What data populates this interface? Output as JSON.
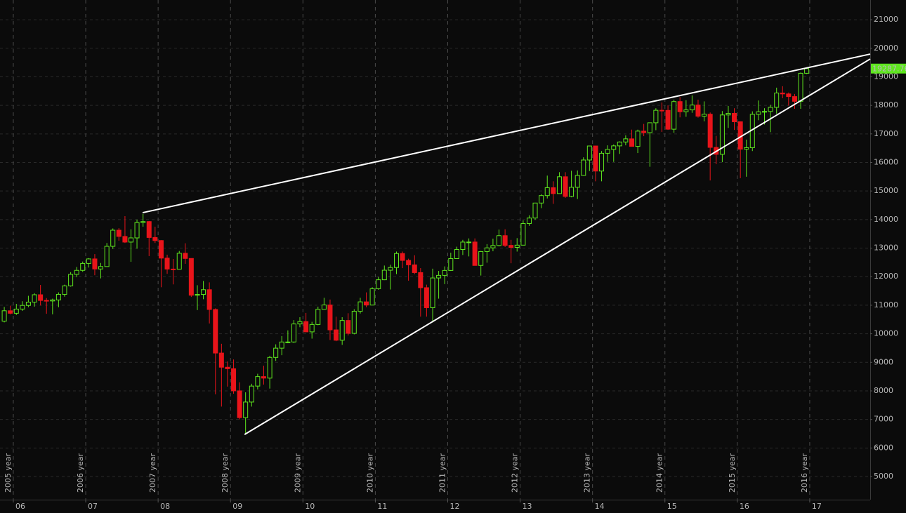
{
  "chart_data": {
    "type": "candlestick",
    "up_color": "#5ee61e",
    "down_color": "#e8141a",
    "grid": true,
    "xlim": [
      2005.816,
      2017.835
    ],
    "xticks": [
      {
        "value": 2006,
        "label": "06"
      },
      {
        "value": 2007,
        "label": "07"
      },
      {
        "value": 2008,
        "label": "08"
      },
      {
        "value": 2009,
        "label": "09"
      },
      {
        "value": 2010,
        "label": "10"
      },
      {
        "value": 2011,
        "label": "11"
      },
      {
        "value": 2012,
        "label": "12"
      },
      {
        "value": 2013,
        "label": "13"
      },
      {
        "value": 2014,
        "label": "14"
      },
      {
        "value": 2015,
        "label": "15"
      },
      {
        "value": 2016,
        "label": "16"
      },
      {
        "value": 2017,
        "label": "17"
      }
    ],
    "period_labels": [
      "2005 year",
      "2006 year",
      "2007 year",
      "2008 year",
      "2009 year",
      "2010 year",
      "2011 year",
      "2012 year",
      "2013 year",
      "2014 year",
      "2015 year",
      "2016 year"
    ],
    "ylim": [
      4190,
      21690
    ],
    "yticks": [
      5000,
      6000,
      7000,
      8000,
      9000,
      10000,
      11000,
      12000,
      13000,
      14000,
      15000,
      16000,
      17000,
      18000,
      19000,
      20000,
      21000
    ],
    "last_price": 19287.76,
    "x": [
      2005.875,
      2005.958,
      2006.042,
      2006.125,
      2006.208,
      2006.292,
      2006.375,
      2006.458,
      2006.542,
      2006.625,
      2006.708,
      2006.792,
      2006.875,
      2006.958,
      2007.042,
      2007.125,
      2007.208,
      2007.292,
      2007.375,
      2007.458,
      2007.542,
      2007.625,
      2007.708,
      2007.792,
      2007.875,
      2007.958,
      2008.042,
      2008.125,
      2008.208,
      2008.292,
      2008.375,
      2008.458,
      2008.542,
      2008.625,
      2008.708,
      2008.792,
      2008.875,
      2008.958,
      2009.042,
      2009.125,
      2009.208,
      2009.292,
      2009.375,
      2009.458,
      2009.542,
      2009.625,
      2009.708,
      2009.792,
      2009.875,
      2009.958,
      2010.042,
      2010.125,
      2010.208,
      2010.292,
      2010.375,
      2010.458,
      2010.542,
      2010.625,
      2010.708,
      2010.792,
      2010.875,
      2010.958,
      2011.042,
      2011.125,
      2011.208,
      2011.292,
      2011.375,
      2011.458,
      2011.542,
      2011.625,
      2011.708,
      2011.792,
      2011.875,
      2011.958,
      2012.042,
      2012.125,
      2012.208,
      2012.292,
      2012.375,
      2012.458,
      2012.542,
      2012.625,
      2012.708,
      2012.792,
      2012.875,
      2012.958,
      2013.042,
      2013.125,
      2013.208,
      2013.292,
      2013.375,
      2013.458,
      2013.542,
      2013.625,
      2013.708,
      2013.792,
      2013.875,
      2013.958,
      2014.042,
      2014.125,
      2014.208,
      2014.292,
      2014.375,
      2014.458,
      2014.542,
      2014.625,
      2014.708,
      2014.792,
      2014.875,
      2014.958,
      2015.042,
      2015.125,
      2015.208,
      2015.292,
      2015.375,
      2015.458,
      2015.542,
      2015.625,
      2015.708,
      2015.792,
      2015.875,
      2015.958,
      2016.042,
      2016.125,
      2016.208,
      2016.292,
      2016.375,
      2016.458,
      2016.542,
      2016.625,
      2016.708,
      2016.792,
      2016.875,
      2016.958
    ],
    "open": [
      10440,
      10806,
      10718,
      10865,
      10993,
      11109,
      11367,
      11168,
      11150,
      11185,
      11381,
      11679,
      12081,
      12221,
      12463,
      12622,
      12269,
      12354,
      13063,
      13628,
      13409,
      13212,
      13358,
      13896,
      13930,
      13372,
      13265,
      12650,
      12266,
      12263,
      12820,
      12638,
      11350,
      11378,
      11544,
      10851,
      9325,
      8829,
      8776,
      8001,
      7063,
      7609,
      8168,
      8500,
      8447,
      9172,
      9496,
      9712,
      9713,
      10344,
      10428,
      10067,
      10325,
      10857,
      11009,
      10137,
      9774,
      10466,
      10015,
      10788,
      11118,
      11006,
      11578,
      11892,
      12226,
      12320,
      12811,
      12570,
      12414,
      12143,
      11614,
      10913,
      11955,
      12046,
      12218,
      12633,
      12952,
      13212,
      13214,
      12393,
      12880,
      13009,
      13091,
      13437,
      13096,
      13026,
      13104,
      13861,
      14054,
      14579,
      14840,
      15116,
      14910,
      15500,
      14810,
      15130,
      15546,
      16086,
      16577,
      15699,
      16322,
      16458,
      16581,
      16717,
      16827,
      16563,
      17098,
      17043,
      17391,
      17828,
      17823,
      17165,
      18133,
      17776,
      17841,
      18011,
      17620,
      17690,
      16528,
      16285,
      17664,
      17720,
      17425,
      16466,
      16517,
      17685,
      17774,
      17787,
      17930,
      18432,
      18401,
      18308,
      18142,
      19124
    ],
    "high": [
      10940,
      10985,
      11048,
      11140,
      11330,
      11420,
      11710,
      11250,
      11230,
      11450,
      11720,
      12160,
      12340,
      12530,
      12650,
      12790,
      12480,
      13180,
      13690,
      13700,
      14120,
      13660,
      14000,
      14200,
      13950,
      13750,
      13280,
      12770,
      12620,
      12900,
      13170,
      12640,
      11700,
      11850,
      11800,
      10890,
      9650,
      9030,
      9100,
      8300,
      7950,
      8250,
      8600,
      8880,
      9230,
      9630,
      9920,
      10120,
      10480,
      10580,
      10730,
      10420,
      10950,
      11260,
      11200,
      10600,
      10580,
      10720,
      10860,
      11260,
      11450,
      11630,
      11990,
      12390,
      12420,
      12880,
      12880,
      12630,
      12750,
      12300,
      11720,
      12280,
      12200,
      12360,
      12840,
      13050,
      13290,
      13340,
      13340,
      12900,
      13140,
      13330,
      13650,
      13660,
      13290,
      13350,
      13970,
      14150,
      14590,
      14890,
      15540,
      15340,
      15660,
      15660,
      15710,
      15720,
      16180,
      16590,
      16590,
      16400,
      16600,
      16630,
      16740,
      16950,
      17150,
      17150,
      17350,
      17400,
      17900,
      18100,
      18000,
      18200,
      18290,
      18180,
      18350,
      18200,
      18140,
      17750,
      16930,
      17800,
      17980,
      17900,
      17440,
      16800,
      17790,
      18170,
      17900,
      18020,
      18620,
      18670,
      18450,
      18400,
      19150,
      19300
    ],
    "low": [
      10400,
      10680,
      10660,
      10800,
      10930,
      10950,
      10990,
      10700,
      10680,
      10930,
      11300,
      11650,
      11980,
      12170,
      12320,
      12050,
      11940,
      12350,
      12970,
      13260,
      13180,
      12520,
      12980,
      13750,
      12720,
      13180,
      11630,
      12100,
      11730,
      12250,
      12450,
      11290,
      10830,
      11210,
      10360,
      7880,
      7450,
      8150,
      7900,
      7000,
      6470,
      7450,
      8050,
      8220,
      8080,
      9050,
      9250,
      9670,
      9680,
      10230,
      10060,
      9830,
      10300,
      10850,
      9780,
      9740,
      9610,
      9940,
      9980,
      10710,
      10930,
      11000,
      11540,
      11880,
      11550,
      12090,
      12300,
      11860,
      12090,
      10600,
      10600,
      10400,
      11230,
      11740,
      12200,
      12630,
      12760,
      12710,
      12400,
      12040,
      12490,
      12890,
      13060,
      13040,
      12470,
      12880,
      13100,
      13780,
      13990,
      14400,
      14740,
      14550,
      14910,
      14760,
      14780,
      14720,
      15530,
      15700,
      15340,
      15340,
      16020,
      16020,
      16300,
      16600,
      16560,
      16330,
      16920,
      15850,
      17130,
      17070,
      17140,
      17040,
      17580,
      17600,
      17740,
      17570,
      17440,
      15370,
      15940,
      16010,
      17210,
      17140,
      15450,
      15500,
      16400,
      17480,
      17330,
      17060,
      17710,
      18250,
      17990,
      17880,
      17880,
      19100
    ],
    "close": [
      10806,
      10718,
      10865,
      10993,
      11109,
      11367,
      11168,
      11150,
      11185,
      11381,
      11679,
      12081,
      12221,
      12463,
      12622,
      12269,
      12354,
      13063,
      13628,
      13409,
      13212,
      13358,
      13896,
      13930,
      13372,
      13265,
      12650,
      12266,
      12263,
      12820,
      12638,
      11350,
      11378,
      11544,
      10851,
      9325,
      8829,
      8776,
      8001,
      7063,
      7609,
      8168,
      8500,
      8447,
      9172,
      9496,
      9712,
      9713,
      10344,
      10428,
      10067,
      10325,
      10857,
      11009,
      10137,
      9774,
      10466,
      10015,
      10788,
      11118,
      11006,
      11578,
      11892,
      12226,
      12320,
      12811,
      12570,
      12414,
      12143,
      11614,
      10913,
      11955,
      12046,
      12218,
      12633,
      12952,
      13212,
      13214,
      12393,
      12880,
      13009,
      13091,
      13437,
      13096,
      13026,
      13104,
      13861,
      14054,
      14579,
      14840,
      15116,
      14910,
      15500,
      14810,
      15130,
      15546,
      16086,
      16577,
      15699,
      16322,
      16458,
      16581,
      16717,
      16827,
      16563,
      17098,
      17043,
      17391,
      17828,
      17823,
      17165,
      18133,
      17776,
      17841,
      18011,
      17620,
      17690,
      16528,
      16285,
      17664,
      17720,
      17425,
      16466,
      16517,
      17685,
      17774,
      17787,
      17930,
      18432,
      18401,
      18308,
      18142,
      19124,
      19288
    ],
    "trendlines": [
      {
        "color": "#ffffff",
        "x": [
          2007.786,
          2017.835
        ],
        "y": [
          14241,
          19796
        ]
      },
      {
        "color": "#ffffff",
        "x": [
          2009.194,
          2017.835
        ],
        "y": [
          6473,
          19624
        ]
      }
    ]
  }
}
